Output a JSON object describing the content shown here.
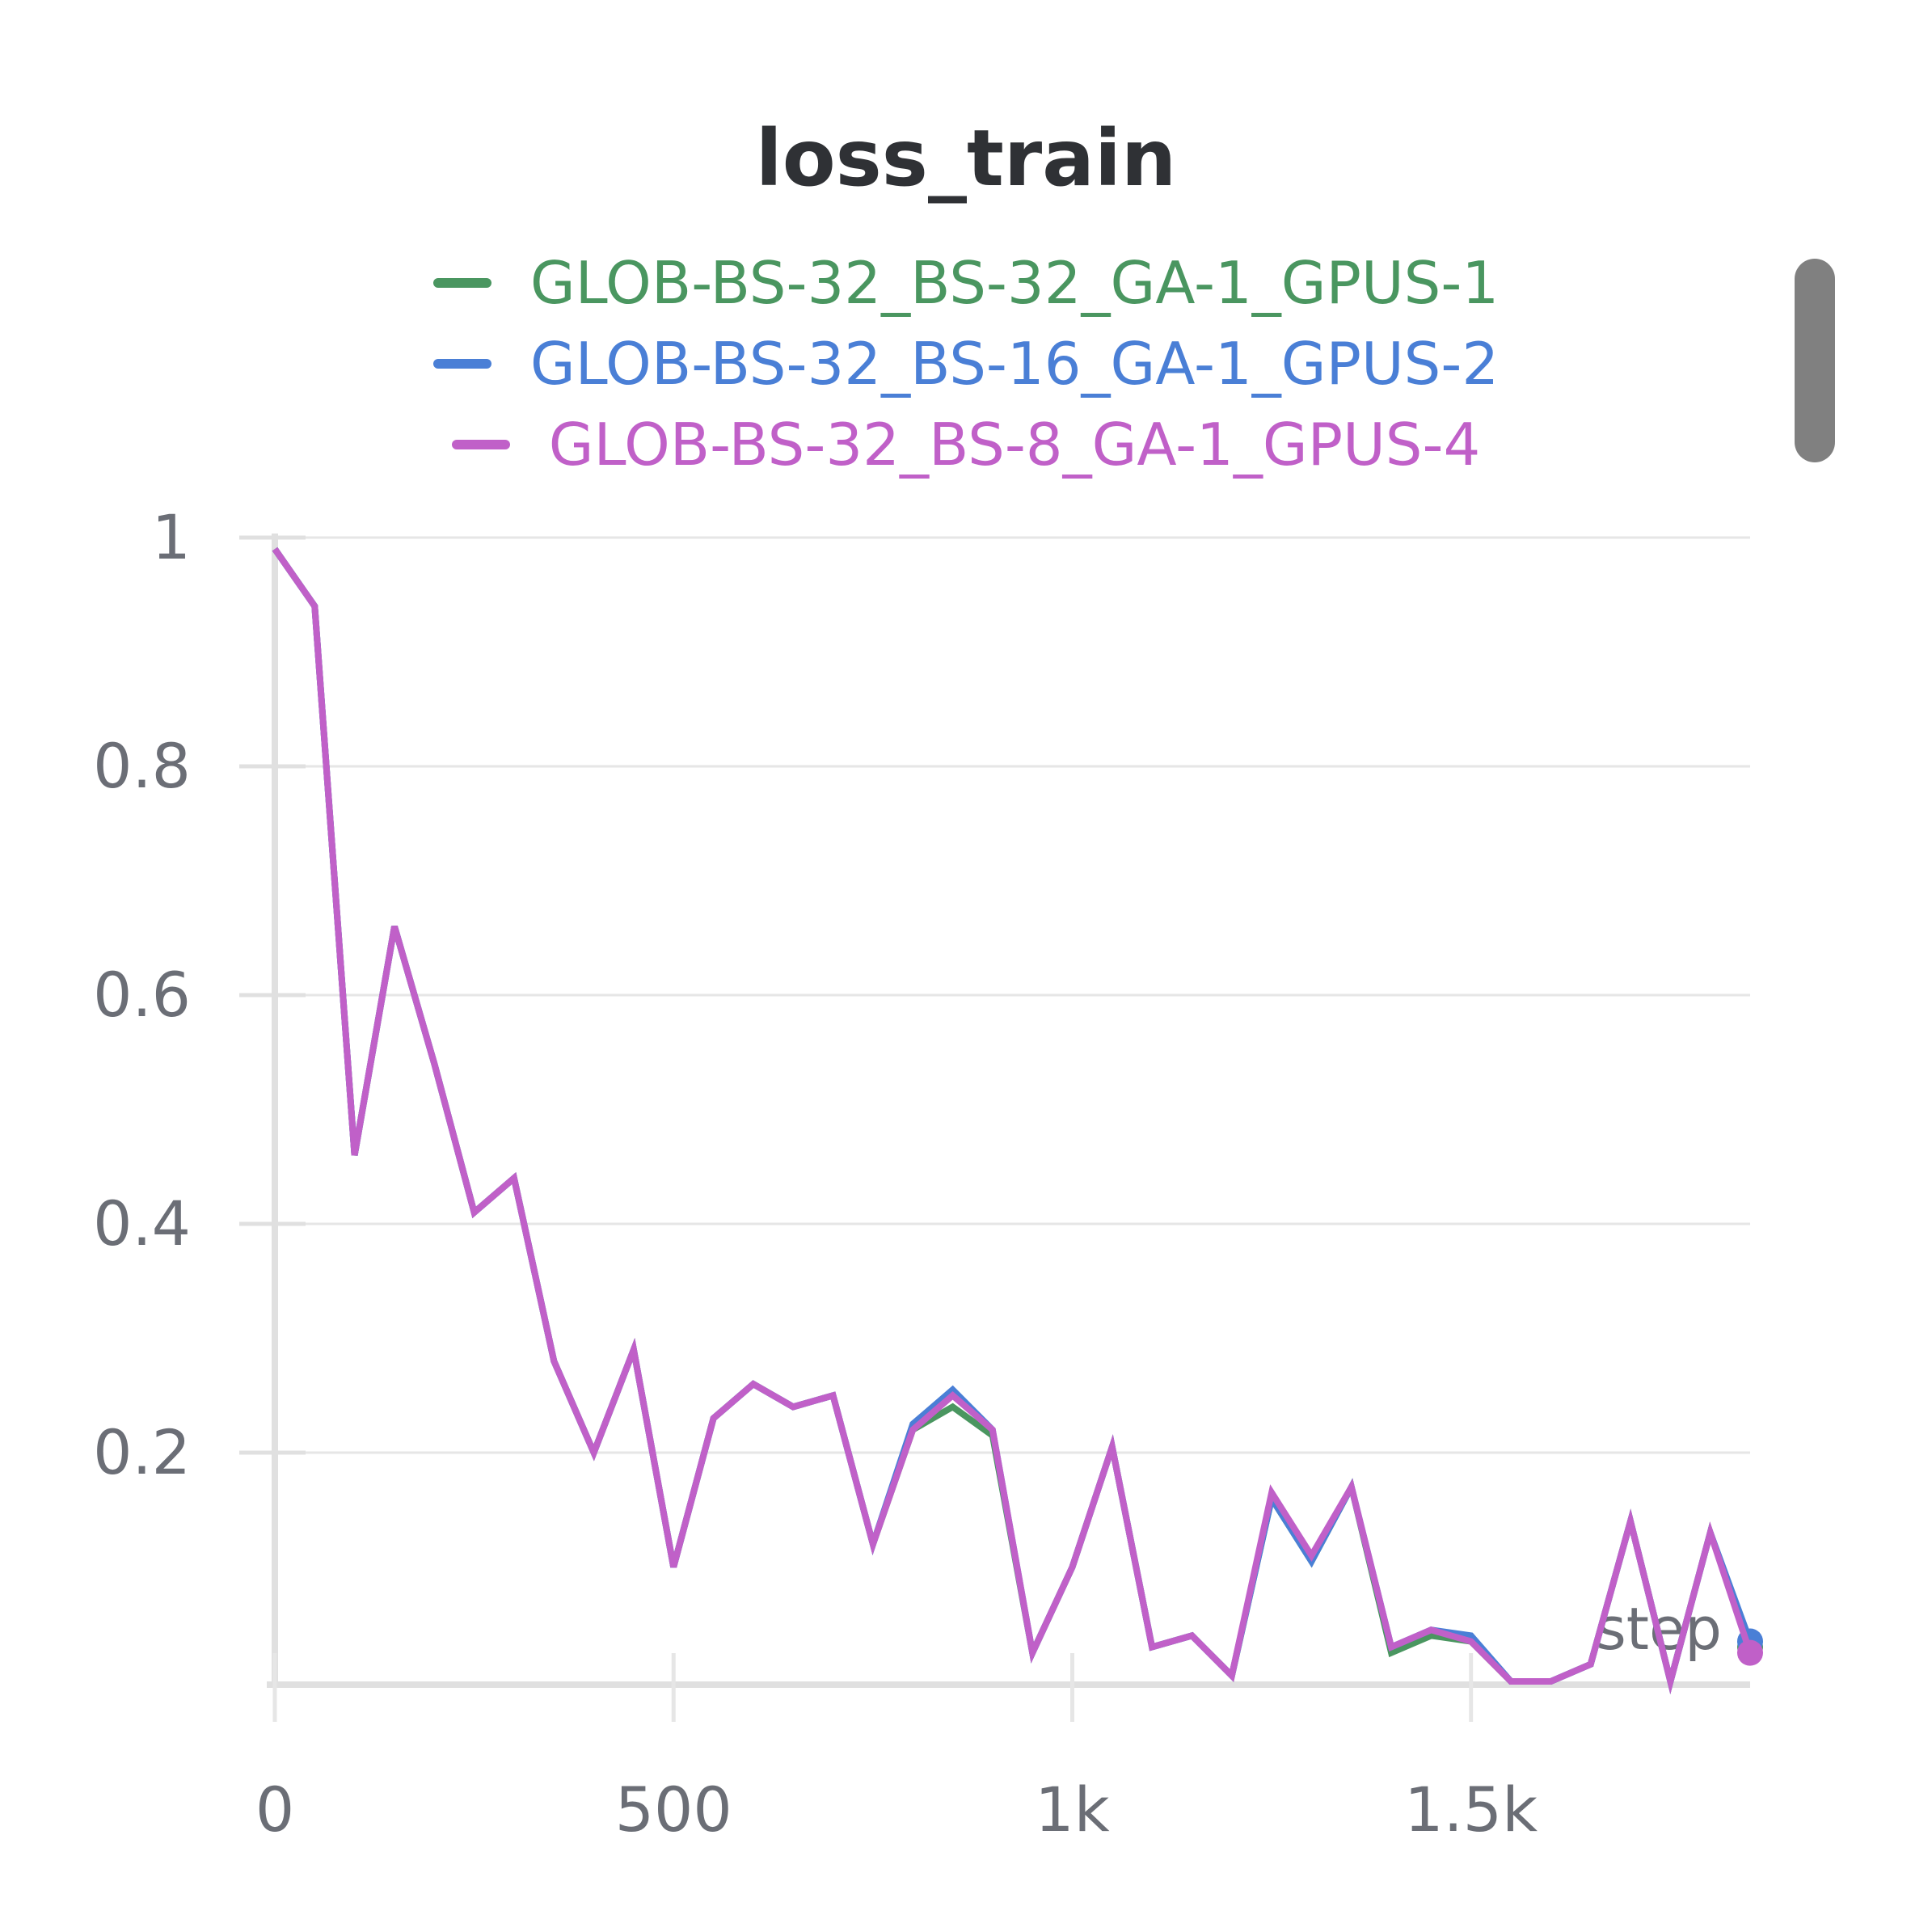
{
  "chart_data": {
    "type": "line",
    "title": "loss_train",
    "xlabel": "step",
    "ylabel": "",
    "xlim": [
      0,
      1850
    ],
    "ylim": [
      0.0,
      1.0
    ],
    "x_ticks": [
      0,
      500,
      1000,
      1500
    ],
    "x_tick_labels": [
      "0",
      "500",
      "1k",
      "1.5k"
    ],
    "y_ticks": [
      0.2,
      0.4,
      0.6,
      0.8,
      1.0
    ],
    "y_tick_labels": [
      "0.2",
      "0.4",
      "0.6",
      "0.8",
      "1"
    ],
    "grid": true,
    "legend_position": "top",
    "x": [
      0,
      50,
      100,
      150,
      200,
      250,
      300,
      350,
      400,
      450,
      500,
      550,
      600,
      650,
      675,
      700,
      750,
      800,
      850,
      900,
      950,
      1000,
      1050,
      1100,
      1150,
      1200,
      1250,
      1300,
      1350,
      1400,
      1450,
      1500,
      1550,
      1600,
      1650,
      1700,
      1750,
      1800,
      1850
    ],
    "series": [
      {
        "name": "GLOB-BS-32_BS-32_GA-1_GPUS-1",
        "color": "#4a9660",
        "values": [
          0.99,
          0.94,
          0.46,
          0.66,
          0.54,
          0.41,
          0.44,
          0.28,
          0.2,
          0.29,
          0.1,
          0.23,
          0.26,
          0.24,
          0.245,
          0.25,
          0.12,
          0.22,
          0.24,
          0.215,
          0.025,
          0.1,
          0.205,
          0.03,
          0.04,
          0.005,
          0.16,
          0.105,
          0.17,
          0.025,
          0.04,
          0.035,
          0.0,
          0.0,
          0.015,
          0.14,
          0.0,
          0.13,
          0.03
        ]
      },
      {
        "name": "GLOB-BS-32_BS-16_GA-1_GPUS-2",
        "color": "#4a7fd6",
        "values": [
          0.99,
          0.94,
          0.46,
          0.66,
          0.54,
          0.41,
          0.44,
          0.28,
          0.2,
          0.29,
          0.1,
          0.23,
          0.26,
          0.24,
          0.245,
          0.25,
          0.12,
          0.225,
          0.255,
          0.22,
          0.025,
          0.1,
          0.205,
          0.03,
          0.04,
          0.005,
          0.16,
          0.105,
          0.17,
          0.03,
          0.045,
          0.04,
          0.0,
          0.0,
          0.015,
          0.14,
          0.0,
          0.13,
          0.035
        ]
      },
      {
        "name": "GLOB-BS-32_BS-8_GA-1_GPUS-4",
        "color": "#c060c8",
        "values": [
          0.99,
          0.94,
          0.46,
          0.66,
          0.54,
          0.41,
          0.44,
          0.28,
          0.2,
          0.29,
          0.1,
          0.23,
          0.26,
          0.24,
          0.245,
          0.25,
          0.12,
          0.22,
          0.25,
          0.22,
          0.025,
          0.1,
          0.205,
          0.03,
          0.04,
          0.005,
          0.165,
          0.11,
          0.17,
          0.03,
          0.045,
          0.035,
          0.0,
          0.0,
          0.015,
          0.14,
          0.0,
          0.13,
          0.025
        ]
      }
    ]
  }
}
